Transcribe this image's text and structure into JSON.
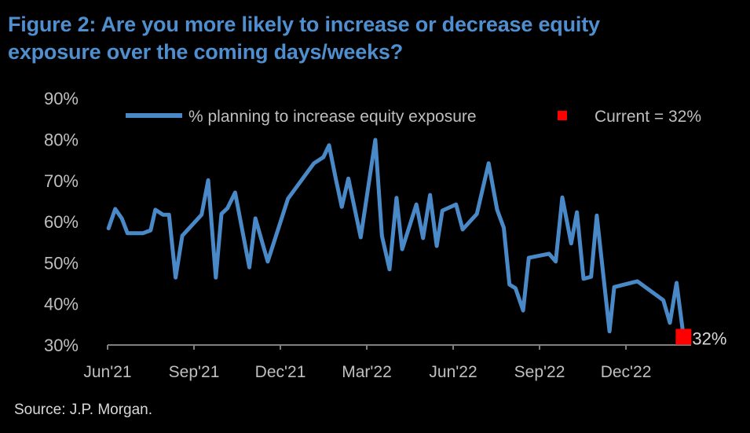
{
  "title_line1": "Figure 2: Are you more likely to increase or decrease equity",
  "title_line2": "exposure over the coming days/weeks?",
  "source": "Source: J.P. Morgan.",
  "colors": {
    "line": "#4a89c8",
    "current": "#ff0000",
    "title": "#4f8fcf",
    "text": "#bfbfbf",
    "background": "#000000"
  },
  "chart_data": {
    "type": "line",
    "ylim": [
      30,
      90
    ],
    "yticks": [
      "30%",
      "40%",
      "50%",
      "60%",
      "70%",
      "80%",
      "90%"
    ],
    "xticks": [
      {
        "date": "2021-06-01",
        "label": "Jun'21"
      },
      {
        "date": "2021-09-01",
        "label": "Sep'21"
      },
      {
        "date": "2021-12-01",
        "label": "Dec'21"
      },
      {
        "date": "2022-03-01",
        "label": "Mar'22"
      },
      {
        "date": "2022-06-01",
        "label": "Jun'22"
      },
      {
        "date": "2022-09-01",
        "label": "Sep'22"
      },
      {
        "date": "2022-12-01",
        "label": "Dec'22"
      }
    ],
    "grid": false,
    "legend_position": "top",
    "series": [
      {
        "name": "% planning to increase equity exposure",
        "points": [
          [
            "2021-06-02",
            58.4
          ],
          [
            "2021-06-09",
            63.1
          ],
          [
            "2021-06-16",
            60.8
          ],
          [
            "2021-06-22",
            57.2
          ],
          [
            "2021-07-08",
            57.2
          ],
          [
            "2021-07-16",
            57.9
          ],
          [
            "2021-07-21",
            62.9
          ],
          [
            "2021-07-29",
            61.7
          ],
          [
            "2021-08-05",
            61.7
          ],
          [
            "2021-08-12",
            46.4
          ],
          [
            "2021-08-19",
            56.6
          ],
          [
            "2021-09-09",
            61.7
          ],
          [
            "2021-09-16",
            70.1
          ],
          [
            "2021-09-24",
            46.4
          ],
          [
            "2021-09-30",
            61.9
          ],
          [
            "2021-10-06",
            63.3
          ],
          [
            "2021-10-14",
            67.1
          ],
          [
            "2021-10-29",
            48.9
          ],
          [
            "2021-11-05",
            60.8
          ],
          [
            "2021-11-18",
            50.3
          ],
          [
            "2021-12-09",
            65.6
          ],
          [
            "2022-01-06",
            74.2
          ],
          [
            "2022-01-16",
            75.7
          ],
          [
            "2022-01-22",
            78.6
          ],
          [
            "2022-01-29",
            70.5
          ],
          [
            "2022-02-05",
            63.6
          ],
          [
            "2022-02-12",
            70.5
          ],
          [
            "2022-02-25",
            56.2
          ],
          [
            "2022-03-10",
            79.9
          ],
          [
            "2022-03-17",
            56.6
          ],
          [
            "2022-03-25",
            48.4
          ],
          [
            "2022-04-02",
            65.8
          ],
          [
            "2022-04-08",
            53.3
          ],
          [
            "2022-04-23",
            64.2
          ],
          [
            "2022-04-30",
            56.0
          ],
          [
            "2022-05-07",
            66.5
          ],
          [
            "2022-05-14",
            54.1
          ],
          [
            "2022-05-20",
            62.7
          ],
          [
            "2022-06-04",
            64.2
          ],
          [
            "2022-06-11",
            58.1
          ],
          [
            "2022-06-26",
            61.9
          ],
          [
            "2022-07-08",
            74.2
          ],
          [
            "2022-07-17",
            62.9
          ],
          [
            "2022-07-24",
            58.5
          ],
          [
            "2022-07-30",
            44.7
          ],
          [
            "2022-08-06",
            43.8
          ],
          [
            "2022-08-14",
            38.4
          ],
          [
            "2022-08-20",
            51.2
          ],
          [
            "2022-09-11",
            52.2
          ],
          [
            "2022-09-18",
            50.3
          ],
          [
            "2022-09-25",
            65.9
          ],
          [
            "2022-10-04",
            54.7
          ],
          [
            "2022-10-10",
            62.3
          ],
          [
            "2022-10-17",
            46.1
          ],
          [
            "2022-10-25",
            46.6
          ],
          [
            "2022-10-31",
            61.5
          ],
          [
            "2022-11-14",
            33.3
          ],
          [
            "2022-11-19",
            44.1
          ],
          [
            "2022-12-13",
            45.5
          ],
          [
            "2023-01-10",
            40.9
          ],
          [
            "2023-01-17",
            35.4
          ],
          [
            "2023-01-24",
            45.1
          ],
          [
            "2023-02-01",
            32.0
          ]
        ]
      }
    ],
    "current": {
      "name": "Current = 32%",
      "date": "2023-02-01",
      "value": 32,
      "label": "32%"
    }
  }
}
